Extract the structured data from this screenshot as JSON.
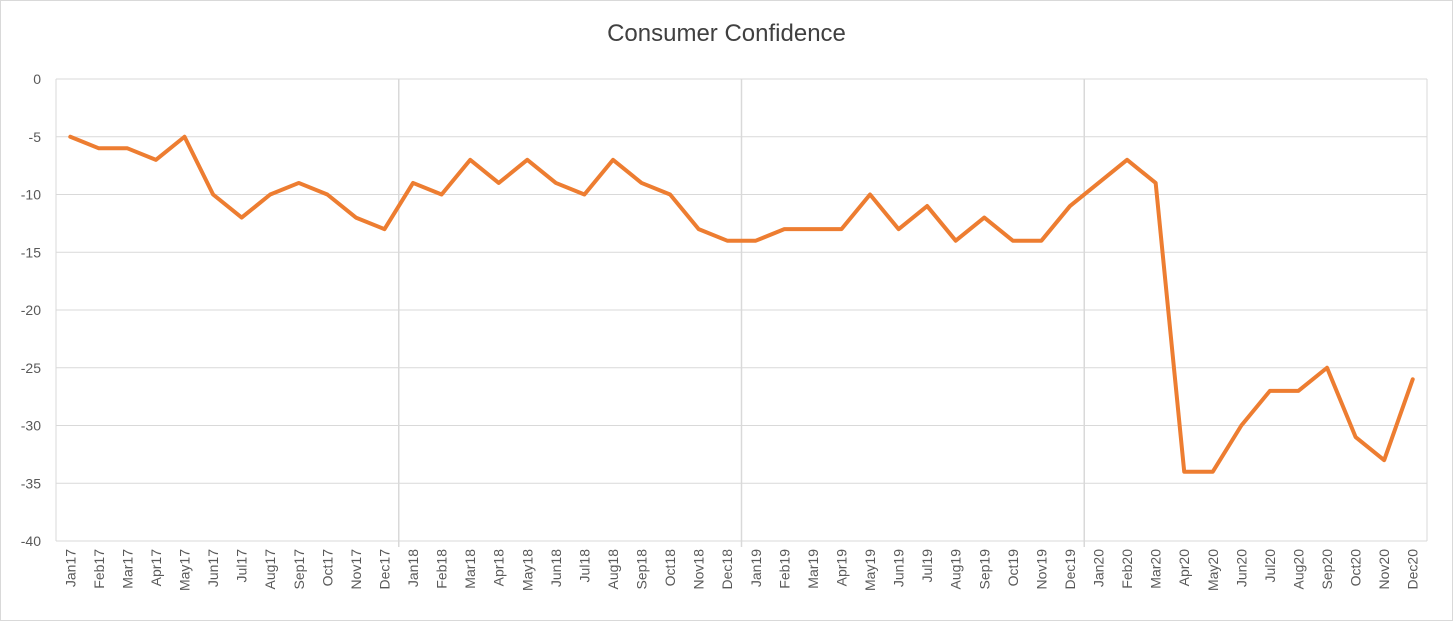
{
  "chart_data": {
    "type": "line",
    "title": "Consumer Confidence",
    "xlabel": "",
    "ylabel": "",
    "ylim": [
      -40,
      0
    ],
    "yticks": [
      0,
      -5,
      -10,
      -15,
      -20,
      -25,
      -30,
      -35,
      -40
    ],
    "grid": true,
    "legend": "none",
    "line_color": "#ED7D31",
    "categories": [
      "Jan17",
      "Feb17",
      "Mar17",
      "Apr17",
      "May17",
      "Jun17",
      "Jul17",
      "Aug17",
      "Sep17",
      "Oct17",
      "Nov17",
      "Dec17",
      "Jan18",
      "Feb18",
      "Mar18",
      "Apr18",
      "May18",
      "Jun18",
      "Jul18",
      "Aug18",
      "Sep18",
      "Oct18",
      "Nov18",
      "Dec18",
      "Jan19",
      "Feb19",
      "Mar19",
      "Apr19",
      "May19",
      "Jun19",
      "Jul19",
      "Aug19",
      "Sep19",
      "Oct19",
      "Nov19",
      "Dec19",
      "Jan20",
      "Feb20",
      "Mar20",
      "Apr20",
      "May20",
      "Jun20",
      "Jul20",
      "Aug20",
      "Sep20",
      "Oct20",
      "Nov20",
      "Dec20"
    ],
    "series": [
      {
        "values": [
          -5,
          -6,
          -6,
          -7,
          -5,
          -10,
          -12,
          -10,
          -9,
          -10,
          -12,
          -13,
          -9,
          -10,
          -7,
          -9,
          -7,
          -9,
          -10,
          -7,
          -9,
          -10,
          -13,
          -14,
          -14,
          -13,
          -13,
          -13,
          -10,
          -13,
          -11,
          -14,
          -12,
          -14,
          -14,
          -11,
          -9,
          -7,
          -9,
          -34,
          -34,
          -30,
          -27,
          -27,
          -25,
          -31,
          -33,
          -26
        ]
      }
    ]
  }
}
